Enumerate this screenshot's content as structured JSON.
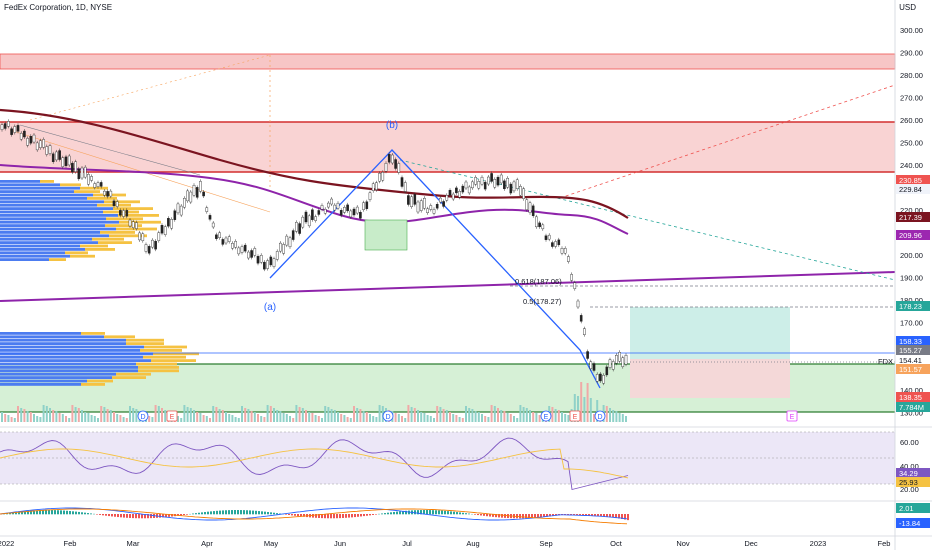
{
  "header": {
    "symbol_title": "FedEx Corporation, 1D, NYSE",
    "currency": "USD"
  },
  "price_axis": {
    "ticks": [
      "300.00",
      "290.00",
      "280.00",
      "270.00",
      "260.00",
      "250.00",
      "240.00",
      "230.00",
      "220.00",
      "210.00",
      "200.00",
      "190.00",
      "180.00",
      "170.00",
      "160.00",
      "150.00",
      "140.00",
      "130.00"
    ],
    "labels": [
      {
        "text": "230.85",
        "color": "#ef5350"
      },
      {
        "text": "229.84",
        "color": "#131722"
      },
      {
        "text": "217.39",
        "color": "#7b1420"
      },
      {
        "text": "209.96",
        "color": "#9c27b0"
      },
      {
        "text": "178.23",
        "color": "#26a69a"
      },
      {
        "text": "158.33",
        "color": "#2962ff"
      },
      {
        "text": "155.27",
        "color": "#787b86"
      },
      {
        "text": "154.41",
        "color": "#ffffff"
      },
      {
        "text": "151.57",
        "color": "#f7a35c"
      },
      {
        "text": "138.35",
        "color": "#ef5350"
      },
      {
        "text": "7.784M",
        "color": "#26a69a"
      }
    ],
    "current_symbol": "FDX",
    "current_price": "154.41"
  },
  "annotations": {
    "wave_b": "(b)",
    "wave_a": "(a)",
    "fib_618": "0.618(187.06)",
    "fib_5": "0.5(178.27)"
  },
  "event_markers": [
    "D",
    "E",
    "D",
    "E",
    "E",
    "D",
    "E"
  ],
  "rsi_axis": {
    "ticks": [
      "60.00",
      "40.00",
      "20.00"
    ],
    "values": [
      "34.29",
      "25.93"
    ]
  },
  "macd_axis": {
    "values": [
      "2.01",
      "-13.84"
    ]
  },
  "time_axis": [
    "2022",
    "Feb",
    "Mar",
    "Apr",
    "May",
    "Jun",
    "Jul",
    "Aug",
    "Sep",
    "Oct",
    "Nov",
    "Dec",
    "2023",
    "Feb"
  ]
}
